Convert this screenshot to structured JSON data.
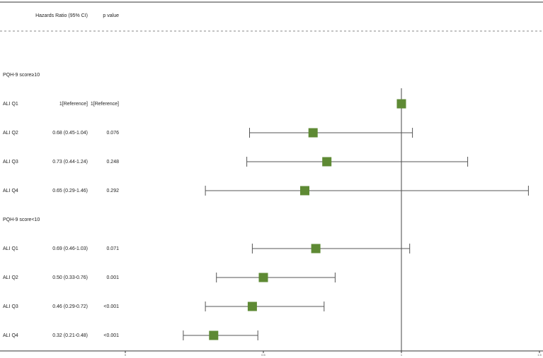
{
  "chart_data": {
    "type": "forest",
    "columns": [
      "Hazards Ratio (95% CI)",
      "p value"
    ],
    "groups": [
      {
        "title": "PQH-9 score≥10",
        "categories": [
          "ALI Q1",
          "ALI Q2",
          "ALI Q3",
          "ALI Q4"
        ],
        "values": [
          1,
          0.68,
          0.73,
          0.65
        ],
        "lower": [
          null,
          0.45,
          0.44,
          0.29
        ],
        "upper": [
          null,
          1.04,
          1.24,
          1.46
        ],
        "value_labels": [
          "1[Reference]",
          "0.68 (0.45-1.04)",
          "0.73 (0.44-1.24)",
          "0.65 (0.29-1.46)"
        ],
        "p_values": [
          "1[Reference]",
          "0.076",
          "0.248",
          "0.292"
        ]
      },
      {
        "title": "PQH-9 score<10",
        "categories": [
          "ALI Q1",
          "ALI Q2",
          "ALI Q3",
          "ALI Q4"
        ],
        "values": [
          0.69,
          0.5,
          0.46,
          0.32
        ],
        "lower": [
          0.46,
          0.33,
          0.29,
          0.21
        ],
        "upper": [
          1.03,
          0.76,
          0.72,
          0.48
        ],
        "value_labels": [
          "0.69 (0.46-1.03)",
          "0.50 (0.33-0.76)",
          "0.46 (0.29-0.72)",
          "0.32 (0.21-0.48)"
        ],
        "p_values": [
          "0.071",
          "0.001",
          "<0.001",
          "<0.001"
        ]
      }
    ],
    "xlim": [
      0,
      1.5
    ],
    "xticks": [
      0,
      0.5,
      1,
      1.5
    ],
    "reference_line": 1,
    "color": "#5e8a34"
  }
}
